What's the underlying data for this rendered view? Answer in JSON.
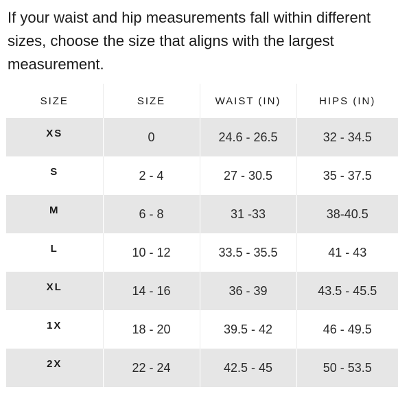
{
  "intro_text": "If your waist and hip measurements fall within different sizes, choose the size that aligns with the largest measurement.",
  "table": {
    "headers": [
      "SIZE",
      "SIZE",
      "WAIST (IN)",
      "HIPS (IN)"
    ],
    "rows": [
      [
        "XS",
        "0",
        "24.6 - 26.5",
        "32 - 34.5"
      ],
      [
        "S",
        "2 - 4",
        "27 - 30.5",
        "35 - 37.5"
      ],
      [
        "M",
        "6 - 8",
        "31 -33",
        "38-40.5"
      ],
      [
        "L",
        "10 - 12",
        "33.5 - 35.5",
        "41 - 43"
      ],
      [
        "XL",
        "14 - 16",
        "36 - 39",
        "43.5 - 45.5"
      ],
      [
        "1X",
        "18 - 20",
        "39.5 - 42",
        "46 - 49.5"
      ],
      [
        "2X",
        "22 - 24",
        "42.5 - 45",
        "50 - 53.5"
      ]
    ]
  },
  "colors": {
    "stripe": "#e6e6e6",
    "text": "#1a1a1a"
  }
}
